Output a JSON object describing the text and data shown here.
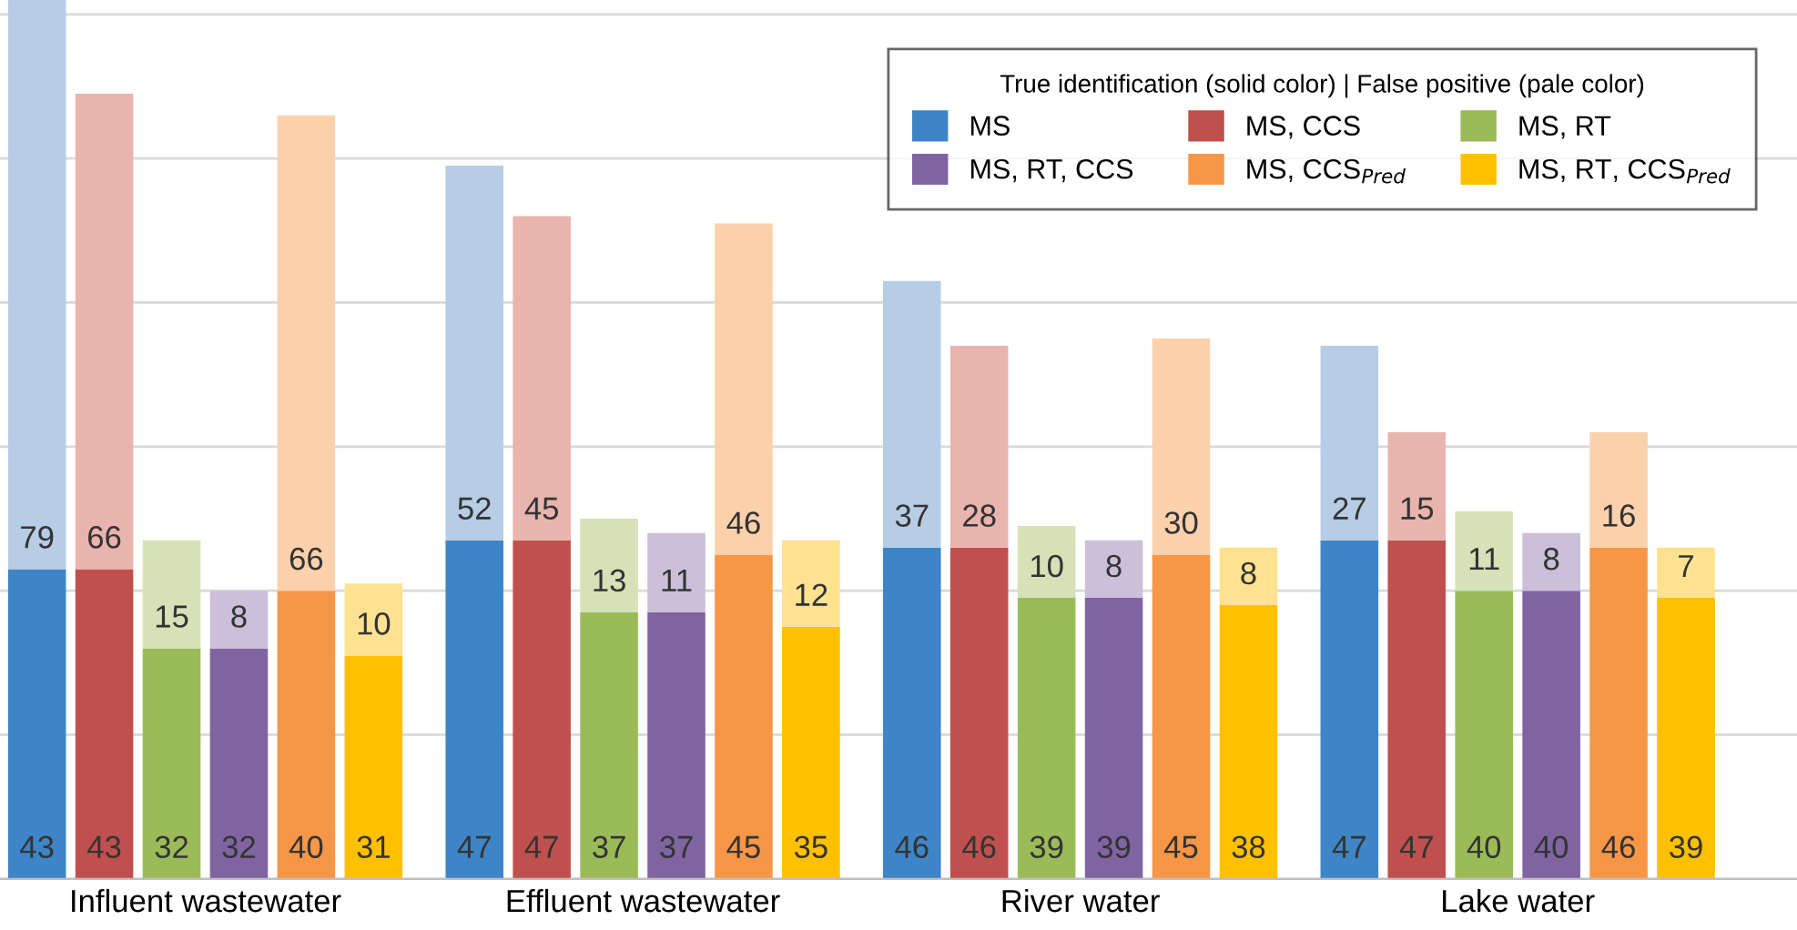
{
  "chart_data": {
    "type": "bar",
    "stacked": true,
    "data_labels": true,
    "tick_labels": "x",
    "grid": "y",
    "legend": "top right",
    "legend_title": "True identification (solid color) | False positive (pale color)",
    "categories": [
      null,
      null,
      null,
      null,
      null,
      "Influent wastewater",
      null,
      null,
      null,
      null,
      null,
      null,
      null,
      null,
      null,
      null,
      null,
      null,
      "Effluent wastewater",
      null,
      null,
      null,
      null,
      null,
      null,
      null,
      null,
      null,
      null,
      null,
      null,
      "River water",
      null,
      null,
      null,
      null,
      null,
      null,
      null,
      null,
      null,
      null,
      null,
      null,
      "Lake water",
      null,
      null,
      null,
      null,
      null,
      null
    ],
    "series": [
      {
        "name": "MS",
        "color": "#3d85c6",
        "values": [
          43,
          null,
          null,
          null,
          null,
          null,
          null,
          null,
          null,
          null,
          null,
          null,
          null,
          47,
          null,
          null,
          null,
          null,
          null,
          null,
          null,
          null,
          null,
          null,
          null,
          null,
          46,
          null,
          null,
          null,
          null,
          null,
          null,
          null,
          null,
          null,
          null,
          null,
          null,
          47,
          null,
          null,
          null,
          null,
          null,
          null,
          null,
          null,
          null,
          null,
          null
        ]
      },
      {
        "color": "#b7cde6",
        "values": [
          79,
          null,
          null,
          null,
          null,
          null,
          null,
          null,
          null,
          null,
          null,
          null,
          null,
          52,
          null,
          null,
          null,
          null,
          null,
          null,
          null,
          null,
          null,
          null,
          null,
          null,
          37,
          null,
          null,
          null,
          null,
          null,
          null,
          null,
          null,
          null,
          null,
          null,
          null,
          27,
          null,
          null,
          null,
          null,
          null,
          null,
          null,
          null,
          null,
          null,
          null
        ]
      },
      {
        "name": "MS, CCS",
        "color": "#c0504d",
        "values": [
          null,
          null,
          43,
          null,
          null,
          null,
          null,
          null,
          null,
          null,
          null,
          null,
          null,
          null,
          null,
          47,
          null,
          null,
          null,
          null,
          null,
          null,
          null,
          null,
          null,
          null,
          null,
          null,
          46,
          null,
          null,
          null,
          null,
          null,
          null,
          null,
          null,
          null,
          null,
          null,
          null,
          47,
          null,
          null,
          null,
          null,
          null,
          null,
          null,
          null,
          null
        ]
      },
      {
        "color": "#e9b4ae",
        "values": [
          null,
          null,
          66,
          null,
          null,
          null,
          null,
          null,
          null,
          null,
          null,
          null,
          null,
          null,
          null,
          45,
          null,
          null,
          null,
          null,
          null,
          null,
          null,
          null,
          null,
          null,
          null,
          null,
          28,
          null,
          null,
          null,
          null,
          null,
          null,
          null,
          null,
          null,
          null,
          null,
          null,
          15,
          null,
          null,
          null,
          null,
          null,
          null,
          null,
          null,
          null
        ]
      },
      {
        "name": "MS, RT",
        "color": "#9bbb59",
        "values": [
          null,
          null,
          null,
          null,
          32,
          null,
          null,
          null,
          null,
          null,
          null,
          null,
          null,
          null,
          null,
          null,
          null,
          37,
          null,
          null,
          null,
          null,
          null,
          null,
          null,
          null,
          null,
          null,
          null,
          null,
          39,
          null,
          null,
          null,
          null,
          null,
          null,
          null,
          null,
          null,
          null,
          null,
          null,
          40,
          null,
          null,
          null,
          null,
          null,
          null,
          null
        ]
      },
      {
        "color": "#d6e1b8",
        "values": [
          null,
          null,
          null,
          null,
          15,
          null,
          null,
          null,
          null,
          null,
          null,
          null,
          null,
          null,
          null,
          null,
          null,
          13,
          null,
          null,
          null,
          null,
          null,
          null,
          null,
          null,
          null,
          null,
          null,
          null,
          10,
          null,
          null,
          null,
          null,
          null,
          null,
          null,
          null,
          null,
          null,
          null,
          null,
          11,
          null,
          null,
          null,
          null,
          null,
          null,
          null
        ]
      },
      {
        "name": "MS, RT, CCS",
        "color": "#8064a2",
        "values": [
          null,
          null,
          null,
          null,
          null,
          null,
          32,
          null,
          null,
          null,
          null,
          null,
          null,
          null,
          null,
          null,
          null,
          null,
          null,
          37,
          null,
          null,
          null,
          null,
          null,
          null,
          null,
          null,
          null,
          null,
          null,
          null,
          39,
          null,
          null,
          null,
          null,
          null,
          null,
          null,
          null,
          null,
          null,
          null,
          null,
          40,
          null,
          null,
          null,
          null,
          null
        ]
      },
      {
        "color": "#cbbfd9",
        "values": [
          null,
          null,
          null,
          null,
          null,
          null,
          8,
          null,
          null,
          null,
          null,
          null,
          null,
          null,
          null,
          null,
          null,
          null,
          null,
          11,
          null,
          null,
          null,
          null,
          null,
          null,
          null,
          null,
          null,
          null,
          null,
          null,
          8,
          null,
          null,
          null,
          null,
          null,
          null,
          null,
          null,
          null,
          null,
          null,
          null,
          8,
          null,
          null,
          null,
          null,
          null
        ]
      },
      {
        "name": "MS, CCS$_{Pred}$",
        "color": "#f79646",
        "values": [
          null,
          null,
          null,
          null,
          null,
          null,
          null,
          null,
          40,
          null,
          null,
          null,
          null,
          null,
          null,
          null,
          null,
          null,
          null,
          null,
          null,
          45,
          null,
          null,
          null,
          null,
          null,
          null,
          null,
          null,
          null,
          null,
          null,
          null,
          45,
          null,
          null,
          null,
          null,
          null,
          null,
          null,
          null,
          null,
          null,
          null,
          null,
          46,
          null,
          null,
          null
        ]
      },
      {
        "color": "#fbd1ac",
        "values": [
          null,
          null,
          null,
          null,
          null,
          null,
          null,
          null,
          66,
          null,
          null,
          null,
          null,
          null,
          null,
          null,
          null,
          null,
          null,
          null,
          null,
          46,
          null,
          null,
          null,
          null,
          null,
          null,
          null,
          null,
          null,
          null,
          null,
          null,
          30,
          null,
          null,
          null,
          null,
          null,
          null,
          null,
          null,
          null,
          null,
          null,
          null,
          16,
          null,
          null,
          null
        ]
      },
      {
        "name": "MS, RT, CCS$_{Pred}$",
        "color": "#ffc000",
        "values": [
          null,
          null,
          null,
          null,
          null,
          null,
          null,
          null,
          null,
          null,
          31,
          null,
          null,
          null,
          null,
          null,
          null,
          null,
          null,
          null,
          null,
          null,
          null,
          35,
          null,
          null,
          null,
          null,
          null,
          null,
          null,
          null,
          null,
          null,
          null,
          null,
          38,
          null,
          null,
          null,
          null,
          null,
          null,
          null,
          null,
          null,
          null,
          null,
          null,
          39,
          null
        ]
      },
      {
        "color": "#ffe28f",
        "values": [
          null,
          null,
          null,
          null,
          null,
          null,
          null,
          null,
          null,
          null,
          10,
          null,
          null,
          null,
          null,
          null,
          null,
          null,
          null,
          null,
          null,
          null,
          null,
          12,
          null,
          null,
          null,
          null,
          null,
          null,
          null,
          null,
          null,
          null,
          null,
          null,
          8,
          null,
          null,
          null,
          null,
          null,
          null,
          null,
          null,
          null,
          null,
          null,
          null,
          7,
          null
        ]
      }
    ]
  }
}
